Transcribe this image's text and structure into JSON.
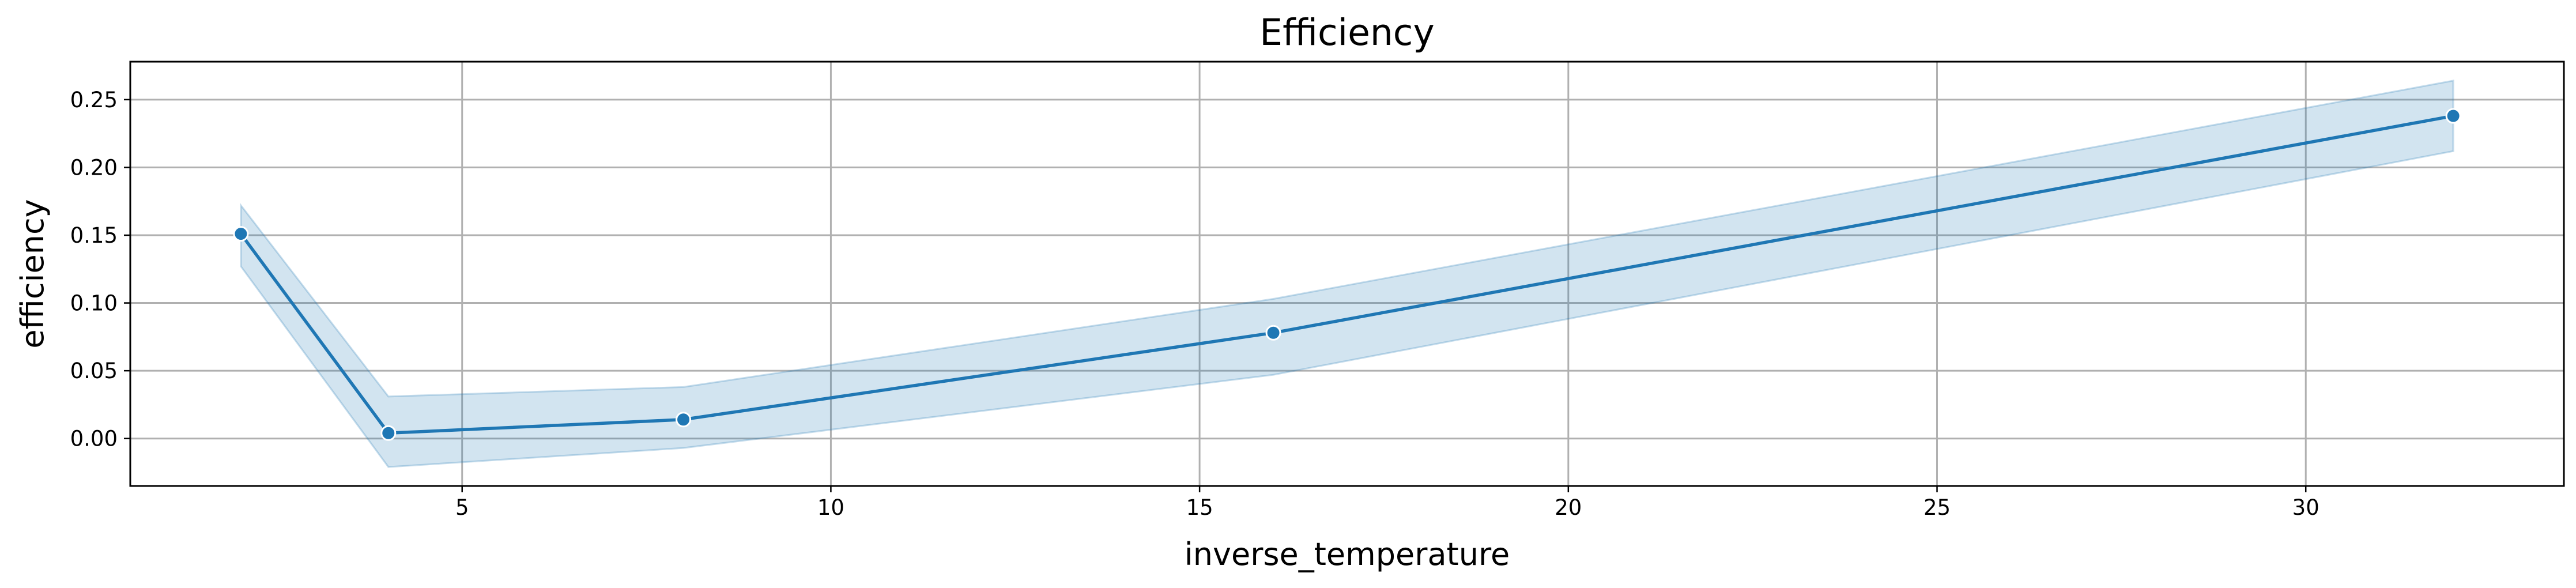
{
  "chart_data": {
    "type": "line",
    "title": "Efficiency",
    "xlabel": "inverse_temperature",
    "ylabel": "efficiency",
    "xlim": [
      0.5,
      33.5
    ],
    "ylim": [
      -0.035,
      0.278
    ],
    "xticks": [
      5,
      10,
      15,
      20,
      25,
      30
    ],
    "yticks": [
      0.0,
      0.05,
      0.1,
      0.15,
      0.2,
      0.25
    ],
    "xtick_labels": [
      "5",
      "10",
      "15",
      "20",
      "25",
      "30"
    ],
    "ytick_labels": [
      "0.00",
      "0.05",
      "0.10",
      "0.15",
      "0.20",
      "0.25"
    ],
    "grid": true,
    "legend": "none",
    "series": [
      {
        "x": [
          2,
          4,
          8,
          16,
          32
        ],
        "values": [
          0.151,
          0.004,
          0.014,
          0.078,
          0.238
        ],
        "ci_lower": [
          0.127,
          -0.021,
          -0.007,
          0.047,
          0.212
        ],
        "ci_upper": [
          0.172,
          0.031,
          0.038,
          0.103,
          0.264
        ],
        "color": "#1f77b4",
        "band_color": "#1f77b4",
        "marker": "circle"
      }
    ]
  }
}
